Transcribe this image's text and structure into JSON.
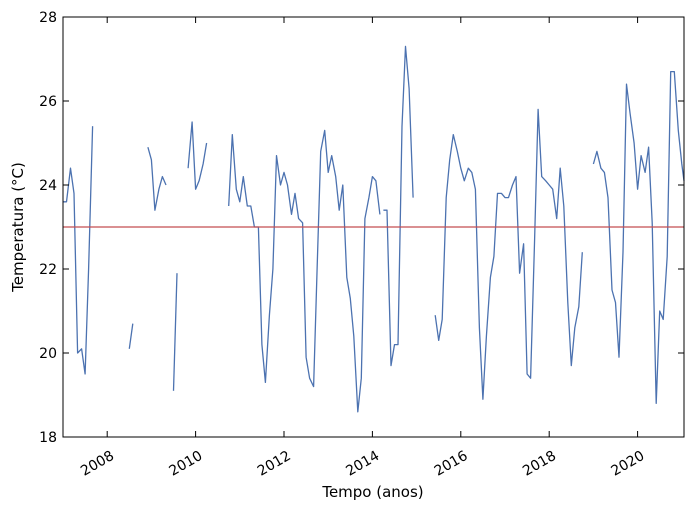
{
  "chart_data": {
    "type": "line",
    "xlabel": "Tempo (anos)",
    "ylabel": "Temperatura (°C)",
    "xlim": [
      2007.0,
      2021.05
    ],
    "ylim": [
      18,
      28
    ],
    "yticks": [
      18,
      20,
      22,
      24,
      26,
      28
    ],
    "xticks": [
      2008,
      2010,
      2012,
      2014,
      2016,
      2018,
      2020
    ],
    "grid": false,
    "series_color": "#4C72B0",
    "reference_line": {
      "y": 23.0,
      "color": "#C44E52"
    },
    "series": [
      {
        "segments": [
          [
            [
              2007.0,
              23.6
            ],
            [
              2007.08,
              23.6
            ],
            [
              2007.17,
              24.4
            ],
            [
              2007.25,
              23.8
            ],
            [
              2007.33,
              20.0
            ],
            [
              2007.42,
              20.1
            ],
            [
              2007.5,
              19.5
            ],
            [
              2007.58,
              22.0
            ],
            [
              2007.67,
              25.4
            ]
          ],
          [
            [
              2008.5,
              20.1
            ],
            [
              2008.58,
              20.7
            ]
          ],
          [
            [
              2008.92,
              24.9
            ],
            [
              2009.0,
              24.6
            ],
            [
              2009.08,
              23.4
            ],
            [
              2009.17,
              23.9
            ],
            [
              2009.25,
              24.2
            ],
            [
              2009.33,
              24.0
            ]
          ],
          [
            [
              2009.5,
              19.1
            ],
            [
              2009.58,
              21.9
            ]
          ],
          [
            [
              2009.83,
              24.4
            ],
            [
              2009.92,
              25.5
            ],
            [
              2010.0,
              23.9
            ],
            [
              2010.08,
              24.1
            ],
            [
              2010.17,
              24.5
            ],
            [
              2010.25,
              25.0
            ]
          ],
          [
            [
              2010.75,
              23.5
            ],
            [
              2010.83,
              25.2
            ],
            [
              2010.92,
              23.9
            ],
            [
              2011.0,
              23.6
            ],
            [
              2011.08,
              24.2
            ],
            [
              2011.17,
              23.5
            ],
            [
              2011.25,
              23.5
            ],
            [
              2011.33,
              23.0
            ],
            [
              2011.42,
              23.0
            ],
            [
              2011.5,
              20.2
            ],
            [
              2011.58,
              19.3
            ],
            [
              2011.67,
              20.9
            ],
            [
              2011.75,
              22.0
            ],
            [
              2011.83,
              24.7
            ],
            [
              2011.92,
              24.0
            ],
            [
              2012.0,
              24.3
            ],
            [
              2012.08,
              24.0
            ],
            [
              2012.17,
              23.3
            ],
            [
              2012.25,
              23.8
            ],
            [
              2012.33,
              23.2
            ],
            [
              2012.42,
              23.1
            ],
            [
              2012.5,
              19.9
            ],
            [
              2012.58,
              19.4
            ],
            [
              2012.67,
              19.2
            ],
            [
              2012.75,
              22.0
            ],
            [
              2012.83,
              24.8
            ],
            [
              2012.92,
              25.3
            ],
            [
              2013.0,
              24.3
            ],
            [
              2013.08,
              24.7
            ],
            [
              2013.17,
              24.2
            ],
            [
              2013.25,
              23.4
            ],
            [
              2013.33,
              24.0
            ],
            [
              2013.42,
              21.8
            ],
            [
              2013.5,
              21.3
            ],
            [
              2013.58,
              20.4
            ],
            [
              2013.67,
              18.6
            ],
            [
              2013.75,
              19.4
            ],
            [
              2013.83,
              23.2
            ],
            [
              2013.92,
              23.7
            ],
            [
              2014.0,
              24.2
            ],
            [
              2014.08,
              24.1
            ],
            [
              2014.17,
              23.3
            ]
          ],
          [
            [
              2014.25,
              23.4
            ],
            [
              2014.33,
              23.4
            ],
            [
              2014.42,
              19.7
            ],
            [
              2014.5,
              20.2
            ],
            [
              2014.58,
              20.2
            ],
            [
              2014.67,
              25.4
            ],
            [
              2014.75,
              27.3
            ],
            [
              2014.83,
              26.3
            ],
            [
              2014.92,
              23.7
            ]
          ],
          [
            [
              2015.42,
              20.9
            ],
            [
              2015.5,
              20.3
            ],
            [
              2015.58,
              20.8
            ],
            [
              2015.67,
              23.7
            ],
            [
              2015.75,
              24.6
            ],
            [
              2015.83,
              25.2
            ],
            [
              2015.92,
              24.8
            ],
            [
              2016.0,
              24.4
            ],
            [
              2016.08,
              24.1
            ],
            [
              2016.17,
              24.4
            ],
            [
              2016.25,
              24.3
            ],
            [
              2016.33,
              23.9
            ],
            [
              2016.42,
              20.6
            ],
            [
              2016.5,
              18.9
            ],
            [
              2016.58,
              20.4
            ],
            [
              2016.67,
              21.8
            ],
            [
              2016.75,
              22.3
            ],
            [
              2016.83,
              23.8
            ],
            [
              2016.92,
              23.8
            ],
            [
              2017.0,
              23.7
            ],
            [
              2017.08,
              23.7
            ],
            [
              2017.17,
              24.0
            ],
            [
              2017.25,
              24.2
            ],
            [
              2017.33,
              21.9
            ],
            [
              2017.42,
              22.6
            ],
            [
              2017.5,
              19.5
            ],
            [
              2017.58,
              19.4
            ],
            [
              2017.67,
              22.7
            ],
            [
              2017.75,
              25.8
            ],
            [
              2017.83,
              24.2
            ],
            [
              2017.92,
              24.1
            ],
            [
              2018.0,
              24.0
            ],
            [
              2018.08,
              23.9
            ],
            [
              2018.17,
              23.2
            ],
            [
              2018.25,
              24.4
            ],
            [
              2018.33,
              23.5
            ],
            [
              2018.42,
              21.2
            ],
            [
              2018.5,
              19.7
            ],
            [
              2018.58,
              20.6
            ],
            [
              2018.67,
              21.1
            ],
            [
              2018.75,
              22.4
            ]
          ],
          [
            [
              2019.0,
              24.5
            ],
            [
              2019.08,
              24.8
            ],
            [
              2019.17,
              24.4
            ],
            [
              2019.25,
              24.3
            ],
            [
              2019.33,
              23.7
            ],
            [
              2019.42,
              21.5
            ],
            [
              2019.5,
              21.2
            ],
            [
              2019.58,
              19.9
            ],
            [
              2019.67,
              22.4
            ],
            [
              2019.75,
              26.4
            ],
            [
              2019.83,
              25.7
            ],
            [
              2019.92,
              25.0
            ],
            [
              2020.0,
              23.9
            ],
            [
              2020.08,
              24.7
            ],
            [
              2020.17,
              24.3
            ],
            [
              2020.25,
              24.9
            ],
            [
              2020.33,
              23.1
            ],
            [
              2020.42,
              18.8
            ],
            [
              2020.5,
              21.0
            ],
            [
              2020.58,
              20.8
            ],
            [
              2020.67,
              22.3
            ],
            [
              2020.75,
              26.7
            ],
            [
              2020.83,
              26.7
            ],
            [
              2020.92,
              25.3
            ],
            [
              2021.0,
              24.5
            ],
            [
              2021.05,
              24.1
            ]
          ]
        ]
      }
    ]
  }
}
